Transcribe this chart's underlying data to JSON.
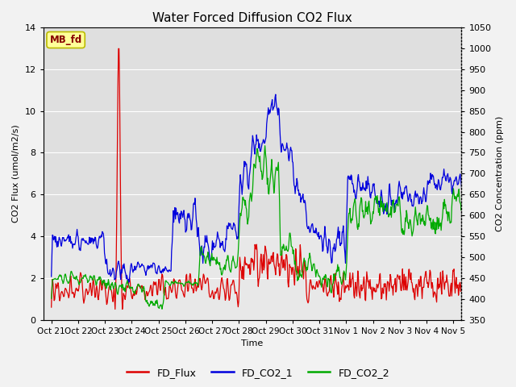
{
  "title": "Water Forced Diffusion CO2 Flux",
  "xlabel": "Time",
  "ylabel_left": "CO2 Flux (umol/m2/s)",
  "ylabel_right": "CO2 Concentration (ppm)",
  "ylim_left": [
    0,
    14
  ],
  "ylim_right": [
    350,
    1050
  ],
  "yticks_left": [
    0,
    2,
    4,
    6,
    8,
    10,
    12,
    14
  ],
  "yticks_right": [
    350,
    400,
    450,
    500,
    550,
    600,
    650,
    700,
    750,
    800,
    850,
    900,
    950,
    1000,
    1050
  ],
  "xtick_labels": [
    "Oct 21",
    "Oct 22",
    "Oct 23",
    "Oct 24",
    "Oct 25",
    "Oct 26",
    "Oct 27",
    "Oct 28",
    "Oct 29",
    "Oct 30",
    "Oct 31",
    "Nov 1",
    "Nov 2",
    "Nov 3",
    "Nov 4",
    "Nov 5"
  ],
  "legend_entries": [
    "FD_Flux",
    "FD_CO2_1",
    "FD_CO2_2"
  ],
  "line_colors": [
    "#dd0000",
    "#0000dd",
    "#00aa00"
  ],
  "label_box_text": "MB_fd",
  "label_box_facecolor": "#ffff99",
  "label_box_edgecolor": "#bbbb00",
  "label_box_textcolor": "#880000",
  "fig_facecolor": "#f2f2f2",
  "axes_facecolor": "#e8e8e8",
  "title_fontsize": 11,
  "axis_label_fontsize": 8,
  "tick_label_fontsize": 8,
  "legend_fontsize": 9
}
